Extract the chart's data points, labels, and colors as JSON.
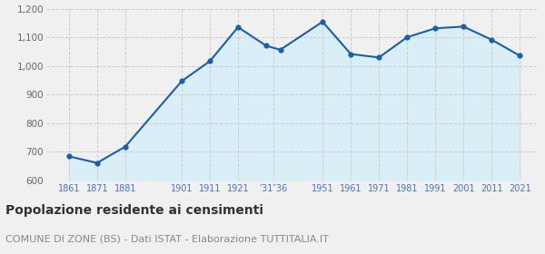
{
  "years": [
    1861,
    1871,
    1881,
    1901,
    1911,
    1921,
    1931,
    1936,
    1951,
    1961,
    1971,
    1981,
    1991,
    2001,
    2011,
    2021
  ],
  "population": [
    684,
    661,
    718,
    947,
    1017,
    1136,
    1071,
    1057,
    1155,
    1042,
    1030,
    1101,
    1132,
    1138,
    1092,
    1036
  ],
  "line_color": "#1a5fa8",
  "fill_color": "#daeef8",
  "marker_color": "#1a5fa8",
  "background_color": "#f0f0f0",
  "plot_bg_color": "#f0f0f0",
  "grid_color": "#cccccc",
  "ylim": [
    600,
    1200
  ],
  "yticks": [
    600,
    700,
    800,
    900,
    1000,
    1100,
    1200
  ],
  "xtick_positions": [
    1861,
    1871,
    1881,
    1901,
    1911,
    1921,
    1933.5,
    1951,
    1961,
    1971,
    1981,
    1991,
    2001,
    2011,
    2021
  ],
  "xtick_labels": [
    "1861",
    "1871",
    "1881",
    "1901",
    "1911",
    "1921",
    "’31″36",
    "1951",
    "1961",
    "1971",
    "1981",
    "1991",
    "2001",
    "2011",
    "2021"
  ],
  "xlim": [
    1853,
    2027
  ],
  "title": "Popolazione residente ai censimenti",
  "subtitle": "COMUNE DI ZONE (BS) - Dati ISTAT - Elaborazione TUTTITALIA.IT",
  "title_fontsize": 10,
  "subtitle_fontsize": 8,
  "tick_color": "#4472c4",
  "ytick_color": "#666666"
}
